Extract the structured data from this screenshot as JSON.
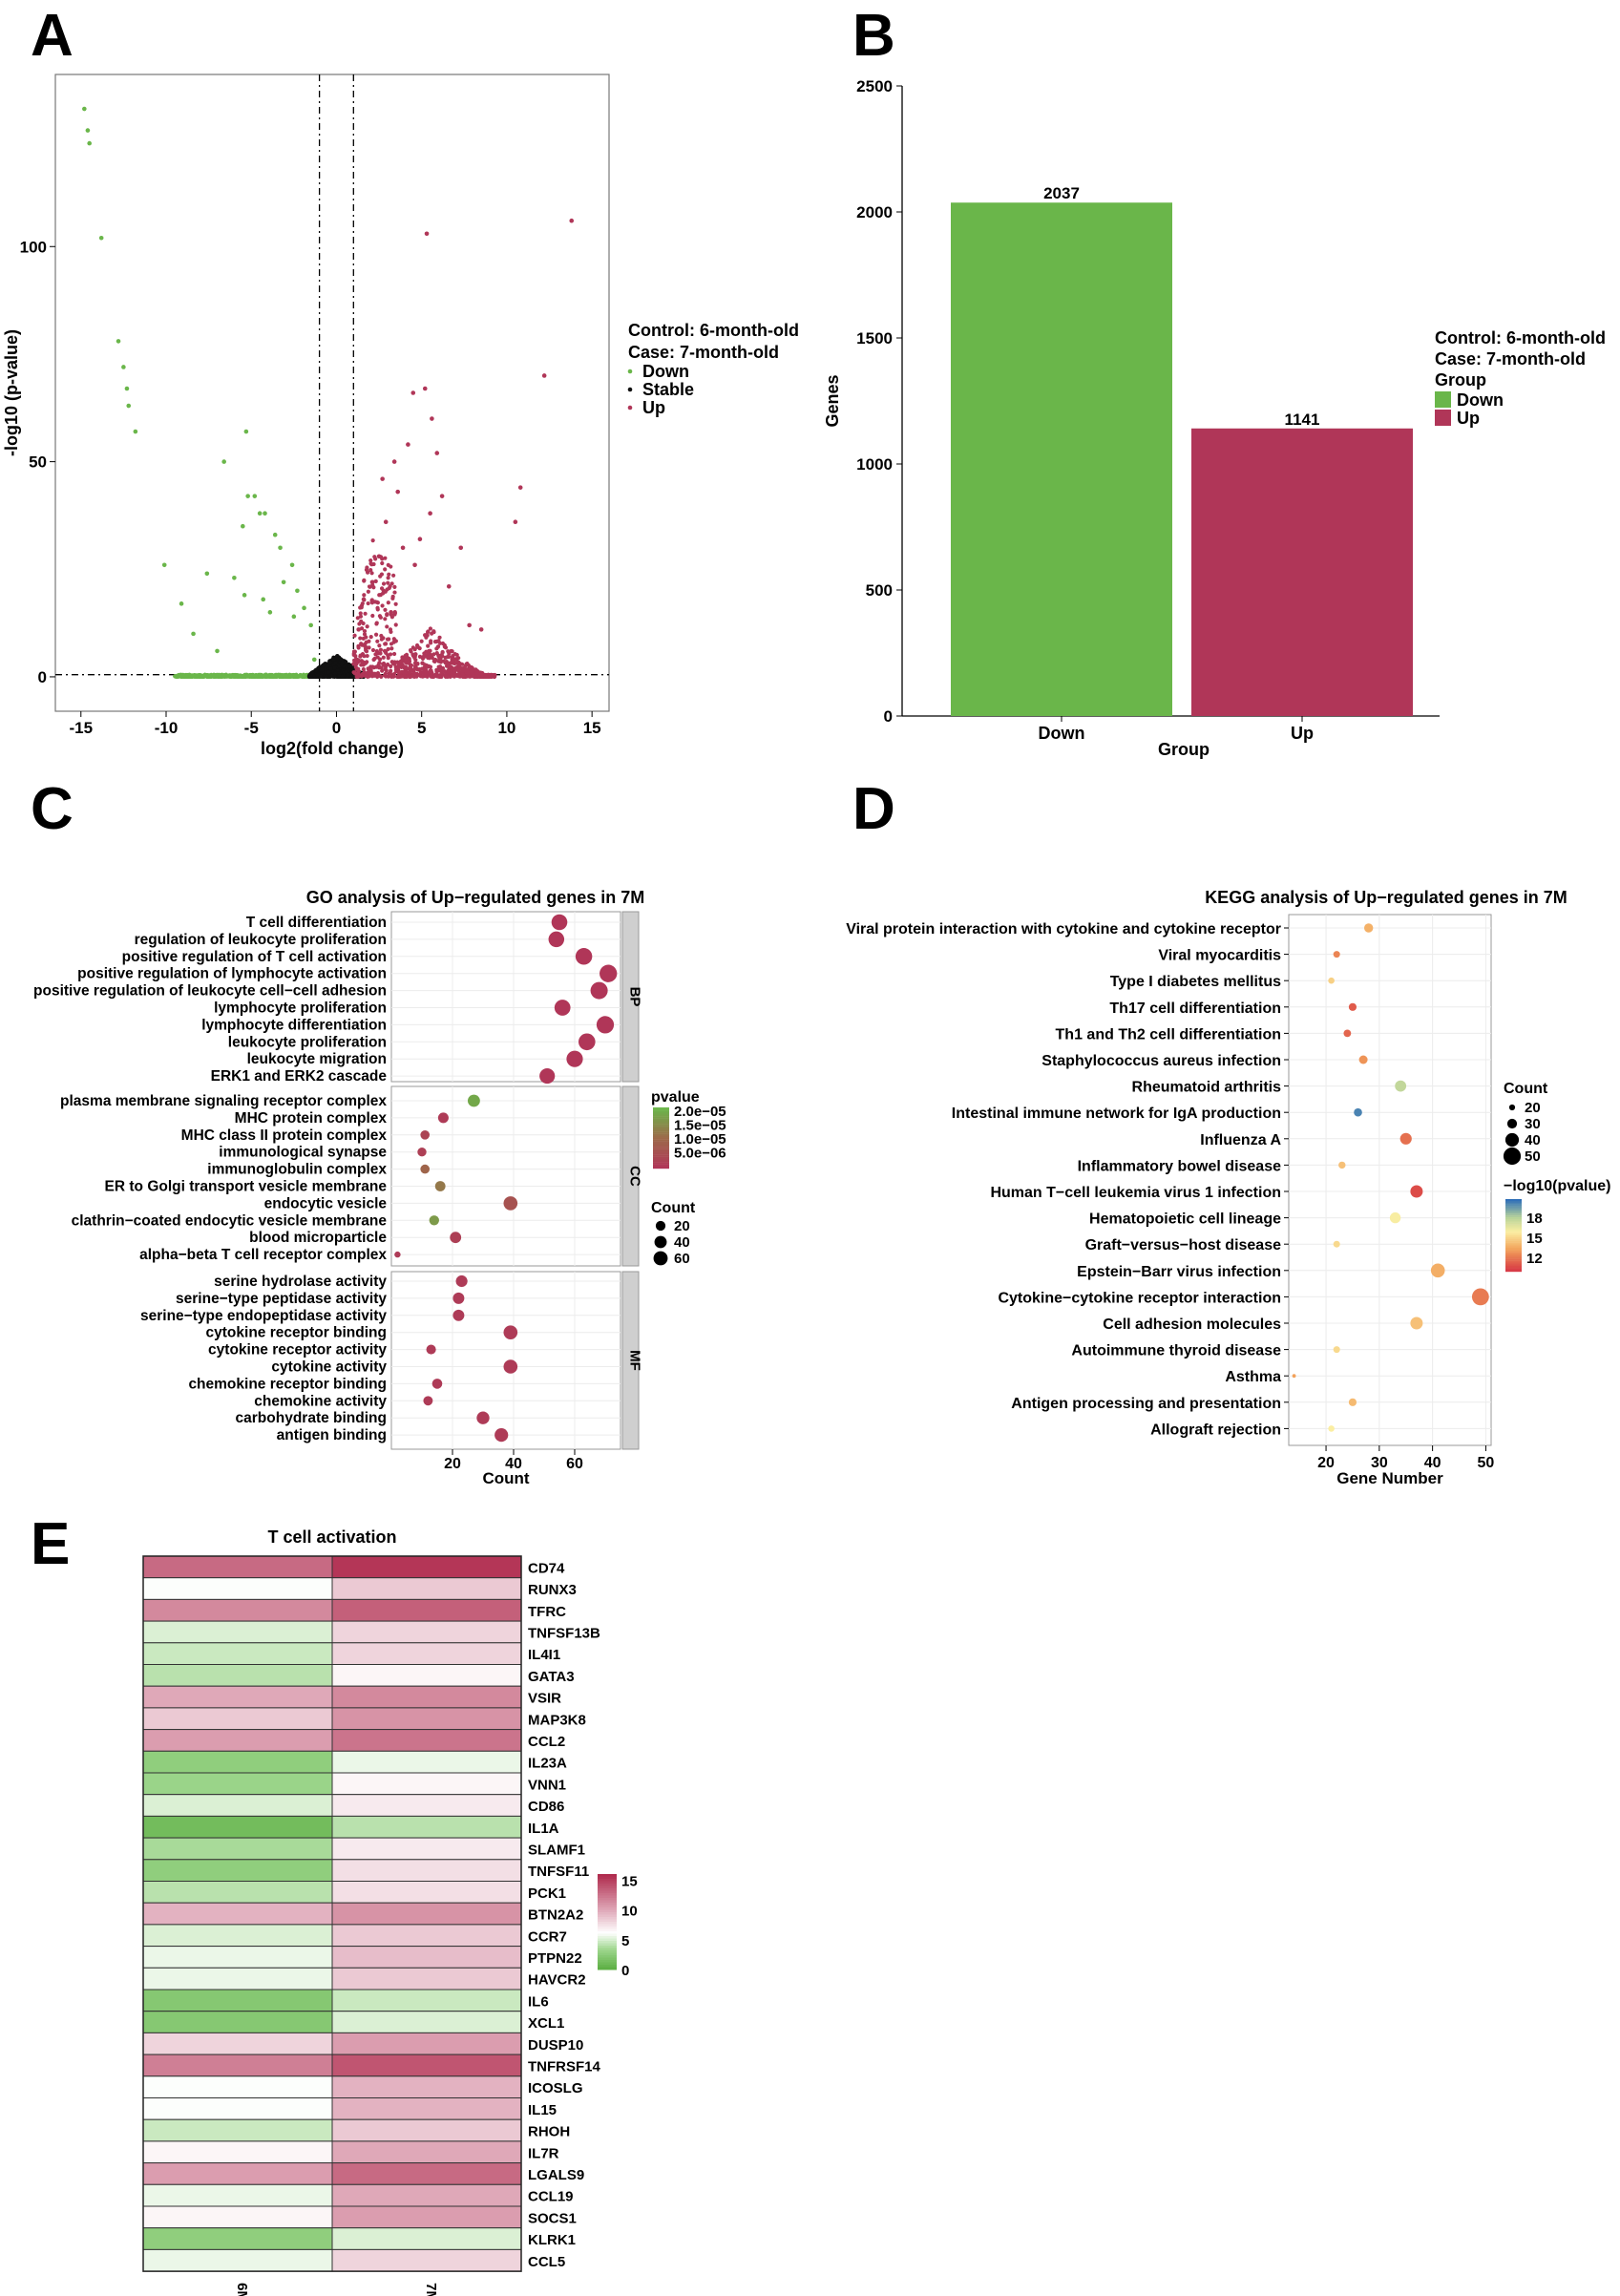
{
  "panels": {
    "A": "A",
    "B": "B",
    "C": "C",
    "D": "D",
    "E": "E"
  },
  "chart_data": [
    {
      "panel": "A",
      "type": "scatter",
      "title": "",
      "xlabel": "log2(fold change)",
      "ylabel": "-log10 (p-value)",
      "xlim": [
        -16.5,
        16
      ],
      "ylim": [
        -8,
        140
      ],
      "xticks": [
        -15,
        -10,
        -5,
        0,
        5,
        10,
        15
      ],
      "yticks": [
        0,
        50,
        100
      ],
      "thresholds": {
        "x": [
          -1,
          1
        ],
        "y": [
          0.5
        ]
      },
      "legend": {
        "title1": "Control: 6-month-old",
        "title2": "Case: 7-month-old",
        "entries": [
          "Down",
          "Stable",
          "Up"
        ]
      },
      "colors": {
        "Down": "#6ab64a",
        "Stable": "#111111",
        "Up": "#b03658"
      },
      "series": [
        {
          "name": "Down",
          "points": [
            [
              -14.8,
              132
            ],
            [
              -14.6,
              127
            ],
            [
              -14.5,
              124
            ],
            [
              -13.8,
              102
            ],
            [
              -12.8,
              78
            ],
            [
              -12.5,
              72
            ],
            [
              -12.3,
              67
            ],
            [
              -12.2,
              63
            ],
            [
              -11.8,
              57
            ],
            [
              -5.3,
              57
            ],
            [
              -6.6,
              50
            ],
            [
              -10.1,
              26
            ],
            [
              -7.6,
              24
            ],
            [
              -5.2,
              42
            ],
            [
              -4.8,
              42
            ],
            [
              -4.5,
              38
            ],
            [
              -4.2,
              38
            ],
            [
              -5.5,
              35
            ],
            [
              -3.6,
              33
            ],
            [
              -3.3,
              30
            ],
            [
              -6.0,
              23
            ],
            [
              -5.4,
              19
            ],
            [
              -4.3,
              18
            ],
            [
              -3.9,
              15
            ],
            [
              -2.6,
              26
            ],
            [
              -2.3,
              20
            ],
            [
              -1.9,
              16
            ],
            [
              -1.5,
              12
            ],
            [
              -8.4,
              10
            ],
            [
              -7.0,
              6
            ],
            [
              -9.1,
              17
            ],
            [
              -3.1,
              22
            ],
            [
              -2.5,
              14
            ],
            [
              -1.3,
              4
            ]
          ],
          "cloud": {
            "xmin": -9.5,
            "xmax": -1,
            "ymax": 24
          }
        },
        {
          "name": "Stable",
          "cloud": {
            "xmin": -1.6,
            "xmax": 1.6,
            "ymax": 5
          }
        },
        {
          "name": "Up",
          "points": [
            [
              13.8,
              106
            ],
            [
              5.3,
              103
            ],
            [
              12.2,
              70
            ],
            [
              10.8,
              44
            ],
            [
              10.5,
              36
            ],
            [
              4.5,
              66
            ],
            [
              5.6,
              60
            ],
            [
              5.2,
              67
            ],
            [
              4.2,
              54
            ],
            [
              3.6,
              43
            ],
            [
              2.9,
              36
            ],
            [
              3.4,
              50
            ],
            [
              5.9,
              52
            ],
            [
              6.2,
              42
            ],
            [
              7.3,
              30
            ],
            [
              6.6,
              21
            ],
            [
              8.5,
              11
            ],
            [
              7.8,
              12
            ],
            [
              4.6,
              26
            ],
            [
              3.9,
              30
            ],
            [
              2.5,
              28
            ],
            [
              2.1,
              22
            ],
            [
              1.6,
              18
            ],
            [
              1.3,
              11
            ],
            [
              2.7,
              46
            ],
            [
              4.9,
              32
            ],
            [
              5.5,
              38
            ],
            [
              3.2,
              15
            ]
          ],
          "cloud": {
            "xmin": 1,
            "xmax": 9.3,
            "ymax": 35
          }
        }
      ]
    },
    {
      "panel": "B",
      "type": "bar",
      "title": "",
      "xlabel": "Group",
      "ylabel": "Genes",
      "ylim": [
        0,
        2500
      ],
      "yticks": [
        0,
        500,
        1000,
        1500,
        2000,
        2500
      ],
      "categories": [
        "Down",
        "Up"
      ],
      "values": [
        2037,
        1141
      ],
      "value_labels": [
        "2037",
        "1141"
      ],
      "colors": [
        "#6ab64a",
        "#b03658"
      ],
      "legend": {
        "title1": "Control: 6-month-old",
        "title2": "Case: 7-month-old",
        "title3": "Group",
        "entries": [
          "Down",
          "Up"
        ]
      }
    },
    {
      "panel": "C",
      "type": "scatter",
      "title": "GO analysis of Up−regulated genes in 7M",
      "xlabel": "Count",
      "xlim": [
        0,
        75
      ],
      "xticks": [
        20,
        40,
        60
      ],
      "color_legend": {
        "title": "pvalue",
        "labels": [
          "2.0e−05",
          "1.5e−05",
          "1.0e−05",
          "5.0e−06"
        ],
        "range": [
          0,
          2.2e-05
        ]
      },
      "size_legend": {
        "title": "Count",
        "labels": [
          "20",
          "40",
          "60"
        ],
        "values": [
          20,
          40,
          60
        ]
      },
      "facets": [
        {
          "label": "BP",
          "terms": [
            {
              "term": "T cell differentiation",
              "count": 55,
              "pvalue": 1e-07
            },
            {
              "term": "regulation of leukocyte proliferation",
              "count": 54,
              "pvalue": 1e-07
            },
            {
              "term": "positive regulation of T cell activation",
              "count": 63,
              "pvalue": 1e-07
            },
            {
              "term": "positive regulation of lymphocyte activation",
              "count": 71,
              "pvalue": 1e-07
            },
            {
              "term": "positive regulation of leukocyte cell−cell adhesion",
              "count": 68,
              "pvalue": 1e-07
            },
            {
              "term": "lymphocyte proliferation",
              "count": 56,
              "pvalue": 1e-07
            },
            {
              "term": "lymphocyte differentiation",
              "count": 70,
              "pvalue": 1e-07
            },
            {
              "term": "leukocyte proliferation",
              "count": 64,
              "pvalue": 1e-07
            },
            {
              "term": "leukocyte migration",
              "count": 60,
              "pvalue": 1e-07
            },
            {
              "term": "ERK1 and ERK2 cascade",
              "count": 51,
              "pvalue": 1e-07
            }
          ]
        },
        {
          "label": "CC",
          "terms": [
            {
              "term": "plasma membrane signaling receptor complex",
              "count": 27,
              "pvalue": 2e-05
            },
            {
              "term": "MHC protein complex",
              "count": 17,
              "pvalue": 1e-06
            },
            {
              "term": "MHC class II protein complex",
              "count": 11,
              "pvalue": 3e-06
            },
            {
              "term": "immunological synapse",
              "count": 10,
              "pvalue": 2e-06
            },
            {
              "term": "immunoglobulin complex",
              "count": 11,
              "pvalue": 1e-05
            },
            {
              "term": "ER to Golgi transport vesicle membrane",
              "count": 16,
              "pvalue": 1.3e-05
            },
            {
              "term": "endocytic vesicle",
              "count": 39,
              "pvalue": 6e-06
            },
            {
              "term": "clathrin−coated endocytic vesicle membrane",
              "count": 14,
              "pvalue": 1.8e-05
            },
            {
              "term": "blood microparticle",
              "count": 21,
              "pvalue": 2e-06
            },
            {
              "term": "alpha−beta T cell receptor complex",
              "count": 2,
              "pvalue": 1e-06
            }
          ]
        },
        {
          "label": "MF",
          "terms": [
            {
              "term": "serine hydrolase activity",
              "count": 23,
              "pvalue": 1e-06
            },
            {
              "term": "serine−type peptidase activity",
              "count": 22,
              "pvalue": 1e-06
            },
            {
              "term": "serine−type endopeptidase activity",
              "count": 22,
              "pvalue": 1e-06
            },
            {
              "term": "cytokine receptor binding",
              "count": 39,
              "pvalue": 1e-06
            },
            {
              "term": "cytokine receptor activity",
              "count": 13,
              "pvalue": 1e-06
            },
            {
              "term": "cytokine activity",
              "count": 39,
              "pvalue": 1e-06
            },
            {
              "term": "chemokine receptor binding",
              "count": 15,
              "pvalue": 1e-06
            },
            {
              "term": "chemokine activity",
              "count": 12,
              "pvalue": 1e-06
            },
            {
              "term": "carbohydrate binding",
              "count": 30,
              "pvalue": 1e-06
            },
            {
              "term": "antigen binding",
              "count": 36,
              "pvalue": 1e-06
            }
          ]
        }
      ]
    },
    {
      "panel": "D",
      "type": "scatter",
      "title": "KEGG analysis of Up−regulated genes in 7M",
      "xlabel": "Gene Number",
      "xlim": [
        13,
        51
      ],
      "xticks": [
        20,
        30,
        40,
        50
      ],
      "size_legend": {
        "title": "Count",
        "labels": [
          "20",
          "30",
          "40",
          "50"
        ],
        "values": [
          20,
          30,
          40,
          50
        ]
      },
      "color_legend": {
        "title": "−log10(pvalue)",
        "labels": [
          "18",
          "15",
          "12"
        ],
        "range": [
          10,
          20
        ]
      },
      "terms": [
        {
          "term": "Viral protein interaction with cytokine and cytokine receptor",
          "gene_number": 28,
          "neglog10p": 13.5
        },
        {
          "term": "Viral myocarditis",
          "gene_number": 22,
          "neglog10p": 12.2
        },
        {
          "term": "Type I diabetes mellitus",
          "gene_number": 21,
          "neglog10p": 14.5
        },
        {
          "term": "Th17 cell differentiation",
          "gene_number": 25,
          "neglog10p": 11.0
        },
        {
          "term": "Th1 and Th2 cell differentiation",
          "gene_number": 24,
          "neglog10p": 11.3
        },
        {
          "term": "Staphylococcus aureus infection",
          "gene_number": 27,
          "neglog10p": 12.6
        },
        {
          "term": "Rheumatoid arthritis",
          "gene_number": 34,
          "neglog10p": 17.2
        },
        {
          "term": "Intestinal immune network for IgA production",
          "gene_number": 26,
          "neglog10p": 19.5
        },
        {
          "term": "Influenza A",
          "gene_number": 35,
          "neglog10p": 11.6
        },
        {
          "term": "Inflammatory bowel disease",
          "gene_number": 23,
          "neglog10p": 14.0
        },
        {
          "term": "Human T−cell leukemia virus 1 infection",
          "gene_number": 37,
          "neglog10p": 10.6
        },
        {
          "term": "Hematopoietic cell lineage",
          "gene_number": 33,
          "neglog10p": 15.6
        },
        {
          "term": "Graft−versus−host disease",
          "gene_number": 22,
          "neglog10p": 14.8
        },
        {
          "term": "Epstein−Barr virus infection",
          "gene_number": 41,
          "neglog10p": 13.4
        },
        {
          "term": "Cytokine−cytokine receptor interaction",
          "gene_number": 49,
          "neglog10p": 11.9
        },
        {
          "term": "Cell adhesion molecules",
          "gene_number": 37,
          "neglog10p": 14.0
        },
        {
          "term": "Autoimmune thyroid disease",
          "gene_number": 22,
          "neglog10p": 14.8
        },
        {
          "term": "Asthma",
          "gene_number": 14,
          "neglog10p": 13.0
        },
        {
          "term": "Antigen processing and presentation",
          "gene_number": 25,
          "neglog10p": 13.8
        },
        {
          "term": "Allograft rejection",
          "gene_number": 21,
          "neglog10p": 15.5
        }
      ]
    },
    {
      "panel": "E",
      "type": "heatmap",
      "title": "T cell activation",
      "columns": [
        "6M",
        "7M"
      ],
      "color_legend": {
        "labels": [
          "15",
          "10",
          "5",
          "0"
        ],
        "values": [
          15,
          10,
          5,
          0
        ],
        "range": [
          0,
          16
        ]
      },
      "rows": [
        {
          "gene": "CD74",
          "values": [
            13,
            15.5
          ]
        },
        {
          "gene": "RUNX3",
          "values": [
            6,
            8.5
          ]
        },
        {
          "gene": "TFRC",
          "values": [
            11.5,
            13.5
          ]
        },
        {
          "gene": "TNFSF13B",
          "values": [
            5,
            8
          ]
        },
        {
          "gene": "IL4I1",
          "values": [
            4.5,
            8
          ]
        },
        {
          "gene": "GATA3",
          "values": [
            4,
            6.5
          ]
        },
        {
          "gene": "VSIR",
          "values": [
            10,
            11.5
          ]
        },
        {
          "gene": "MAP3K8",
          "values": [
            8.5,
            11
          ]
        },
        {
          "gene": "CCL2",
          "values": [
            10.5,
            12.5
          ]
        },
        {
          "gene": "IL23A",
          "values": [
            2.5,
            5.5
          ]
        },
        {
          "gene": "VNN1",
          "values": [
            3,
            6.5
          ]
        },
        {
          "gene": "CD86",
          "values": [
            5,
            7
          ]
        },
        {
          "gene": "IL1A",
          "values": [
            1,
            4
          ]
        },
        {
          "gene": "SLAMF1",
          "values": [
            3.5,
            7
          ]
        },
        {
          "gene": "TNFSF11",
          "values": [
            2.5,
            7.5
          ]
        },
        {
          "gene": "PCK1",
          "values": [
            4,
            7.5
          ]
        },
        {
          "gene": "BTN2A2",
          "values": [
            9.5,
            11
          ]
        },
        {
          "gene": "CCR7",
          "values": [
            5,
            8.5
          ]
        },
        {
          "gene": "PTPN22",
          "values": [
            5.5,
            9
          ]
        },
        {
          "gene": "HAVCR2",
          "values": [
            5.5,
            8.5
          ]
        },
        {
          "gene": "IL6",
          "values": [
            2,
            4.5
          ]
        },
        {
          "gene": "XCL1",
          "values": [
            2,
            5
          ]
        },
        {
          "gene": "DUSP10",
          "values": [
            8,
            10.5
          ]
        },
        {
          "gene": "TNFRSF14",
          "values": [
            12,
            14
          ]
        },
        {
          "gene": "ICOSLG",
          "values": [
            6,
            9.5
          ]
        },
        {
          "gene": "IL15",
          "values": [
            6,
            9.5
          ]
        },
        {
          "gene": "RHOH",
          "values": [
            4.5,
            8.5
          ]
        },
        {
          "gene": "IL7R",
          "values": [
            6.5,
            10
          ]
        },
        {
          "gene": "LGALS9",
          "values": [
            10.5,
            13
          ]
        },
        {
          "gene": "CCL19",
          "values": [
            5.5,
            10
          ]
        },
        {
          "gene": "SOCS1",
          "values": [
            6.5,
            10.5
          ]
        },
        {
          "gene": "KLRK1",
          "values": [
            2.5,
            5
          ]
        },
        {
          "gene": "CCL5",
          "values": [
            5.5,
            8
          ]
        }
      ]
    }
  ]
}
